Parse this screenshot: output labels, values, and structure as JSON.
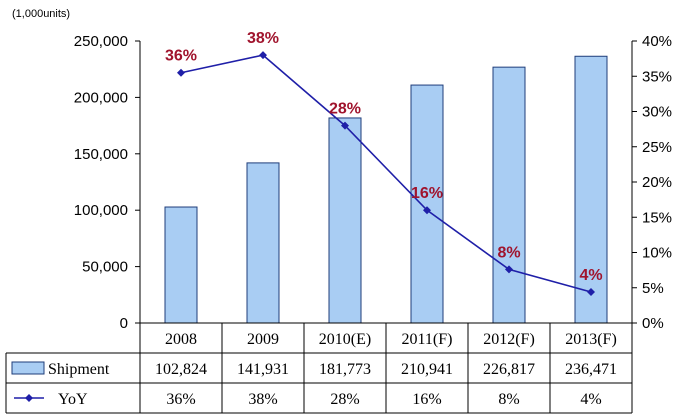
{
  "chart_data": {
    "type": "bar",
    "unit_label": "(1,000units)",
    "categories": [
      "2008",
      "2009",
      "2010(E)",
      "2011(F)",
      "2012(F)",
      "2013(F)"
    ],
    "y_left": {
      "ylim": [
        0,
        250000
      ],
      "ticks": [
        "0",
        "50,000",
        "100,000",
        "150,000",
        "200,000",
        "250,000"
      ]
    },
    "y_right": {
      "ylim": [
        0,
        40
      ],
      "ticks": [
        "0%",
        "5%",
        "10%",
        "15%",
        "20%",
        "25%",
        "30%",
        "35%",
        "40%"
      ]
    },
    "series": [
      {
        "name": "Shipment",
        "kind": "bar",
        "axis": "left",
        "values": [
          102824,
          141931,
          181773,
          210941,
          226817,
          236471
        ],
        "value_labels": [
          "102,824",
          "141,931",
          "181,773",
          "210,941",
          "226,817",
          "236,471"
        ],
        "color": "#a9cdf3",
        "stroke": "#1f3d7a"
      },
      {
        "name": "YoY",
        "kind": "line",
        "axis": "right",
        "values": [
          35.5,
          38,
          28,
          16,
          7.6,
          4.4
        ],
        "value_labels": [
          "36%",
          "38%",
          "28%",
          "16%",
          "8%",
          "4%"
        ],
        "color": "#1f1fa8",
        "label_color": "#a0142d"
      }
    ],
    "legend_placement": "data-table-left",
    "grid": false
  }
}
